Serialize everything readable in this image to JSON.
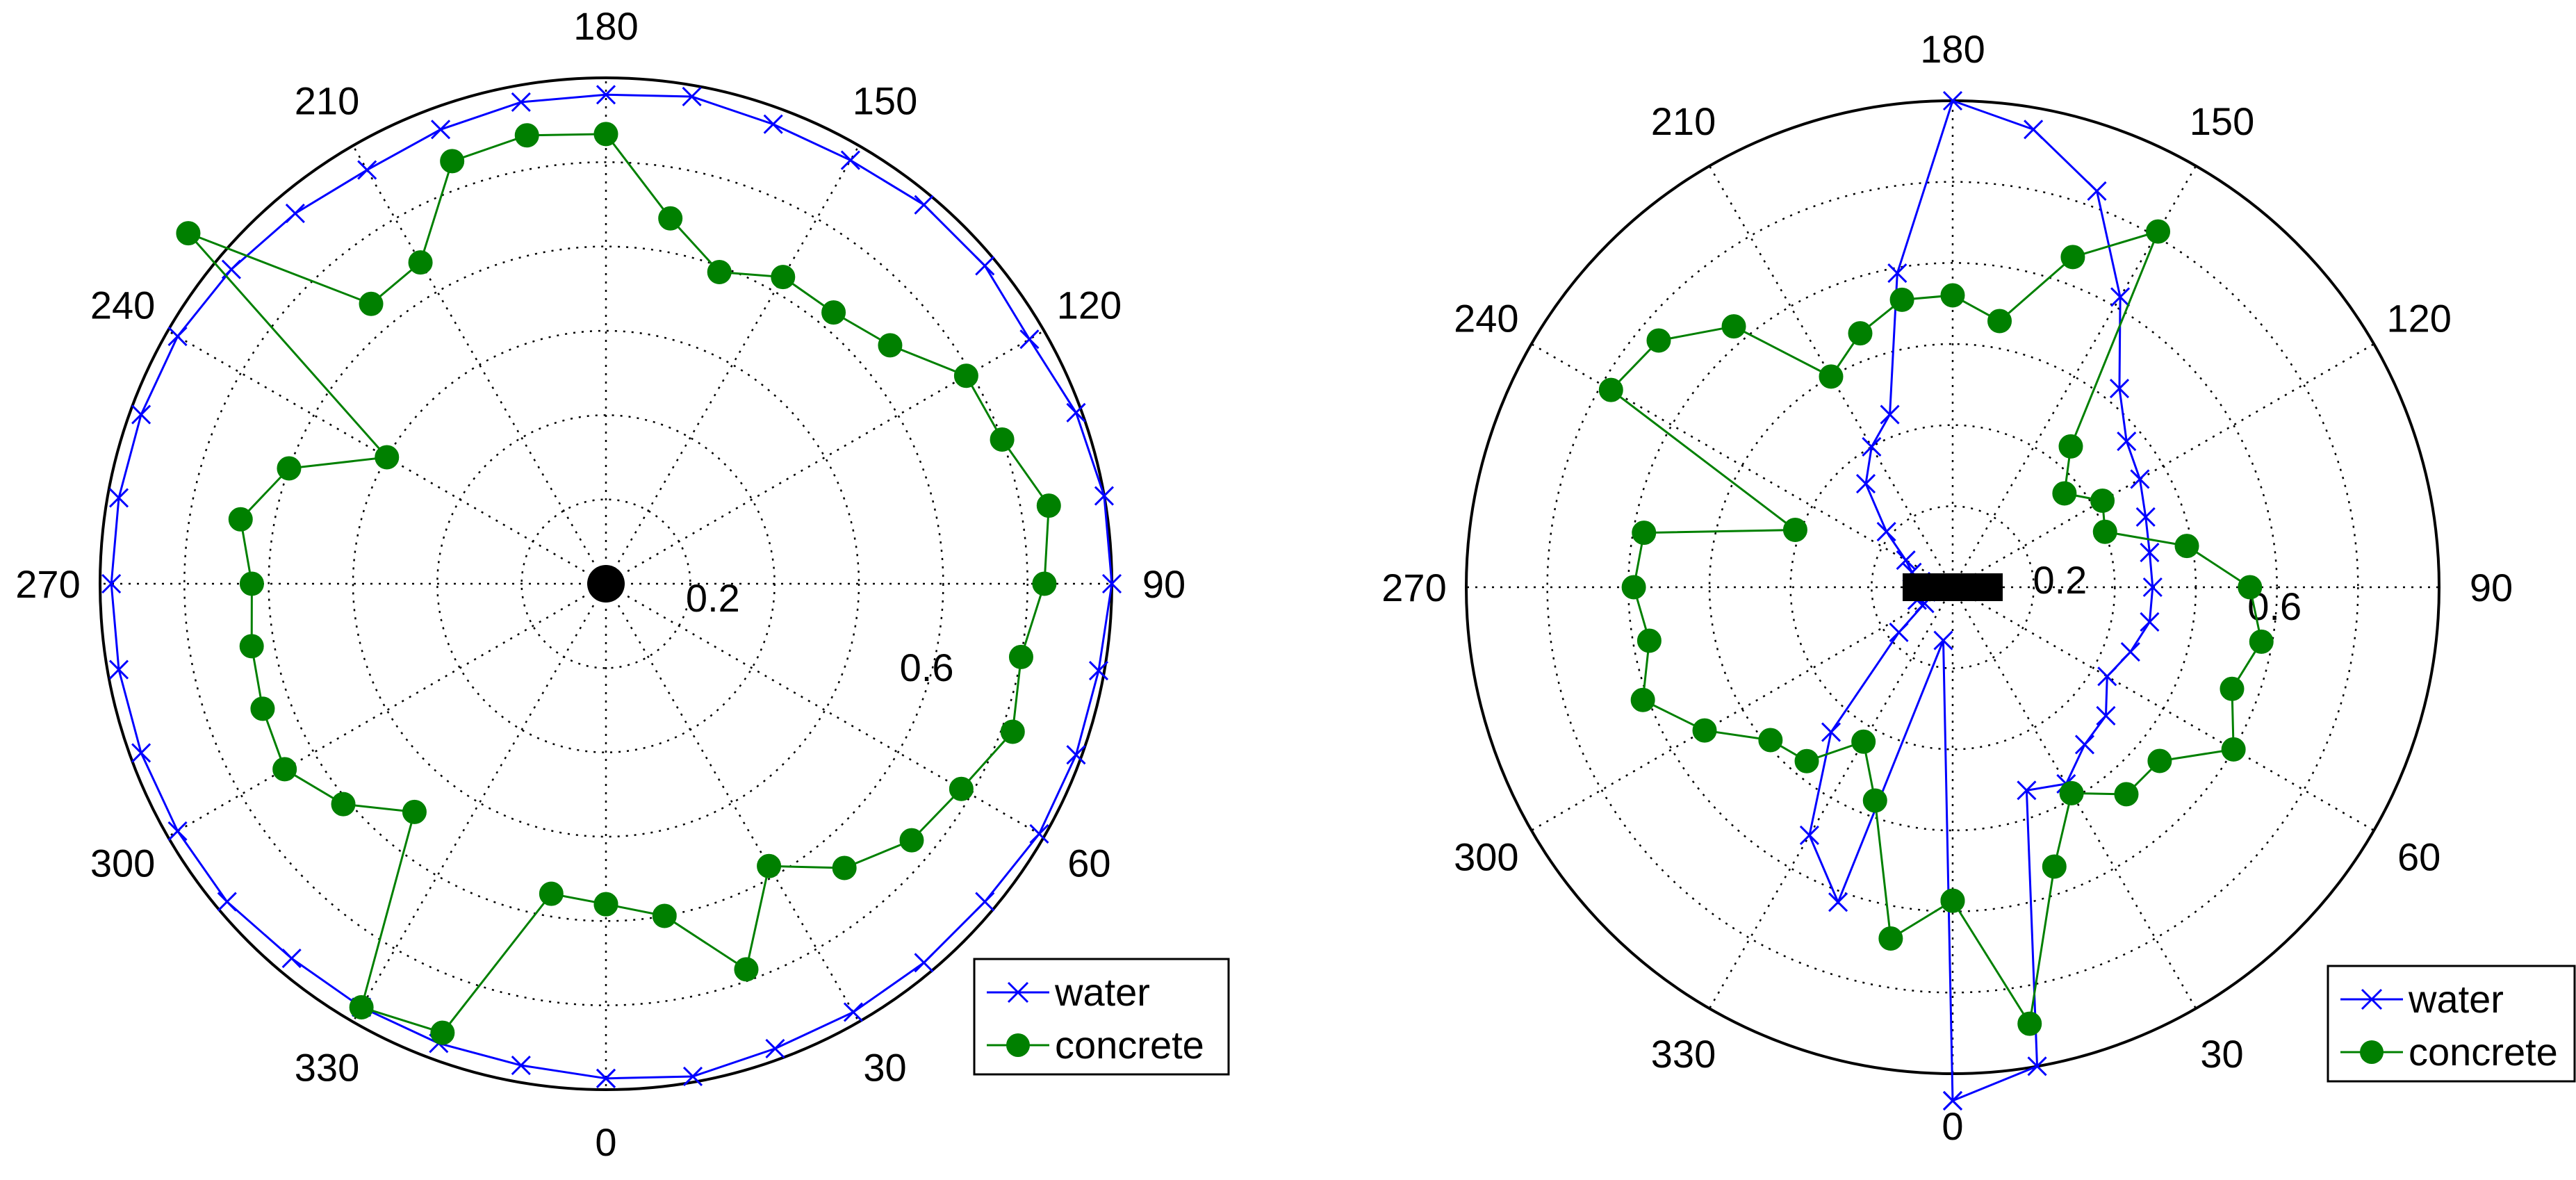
{
  "chart_data": [
    {
      "type": "polar",
      "rlim": [
        0,
        0.9
      ],
      "radial_ticks": [
        0.2,
        0.6
      ],
      "angle_tick_labels": [
        "0",
        "30",
        "60",
        "90",
        "120",
        "150",
        "180",
        "210",
        "240",
        "270",
        "300",
        "330"
      ],
      "theta_zero": "bottom",
      "theta_direction": "counterclockwise",
      "grid": true,
      "legend": {
        "placement": "bottom-right",
        "entries": [
          "water",
          "concrete"
        ]
      },
      "center_marker": "dot",
      "series": [
        {
          "name": "water",
          "color": "#0000ff",
          "marker": "x",
          "theta": [
            0,
            10,
            20,
            30,
            40,
            50,
            60,
            70,
            80,
            90,
            100,
            110,
            120,
            130,
            140,
            150,
            160,
            170,
            180,
            190,
            200,
            210,
            220,
            230,
            240,
            250,
            260,
            270,
            280,
            290,
            300,
            310,
            320,
            330,
            340,
            350,
            360
          ],
          "r": [
            0.88,
            0.89,
            0.88,
            0.88,
            0.88,
            0.88,
            0.89,
            0.89,
            0.89,
            0.9,
            0.9,
            0.89,
            0.87,
            0.88,
            0.88,
            0.87,
            0.87,
            0.88,
            0.87,
            0.87,
            0.86,
            0.85,
            0.86,
            0.87,
            0.88,
            0.88,
            0.88,
            0.88,
            0.88,
            0.88,
            0.88,
            0.88,
            0.87,
            0.87,
            0.87,
            0.87,
            0.88
          ]
        },
        {
          "name": "concrete",
          "color": "#008000",
          "marker": "o",
          "theta": [
            0,
            10,
            20,
            30,
            40,
            50,
            60,
            70,
            80,
            90,
            100,
            110,
            120,
            130,
            140,
            150,
            160,
            170,
            180,
            190,
            200,
            210,
            220,
            230,
            240,
            250,
            260,
            270,
            280,
            290,
            300,
            310,
            320,
            330,
            340,
            350,
            360
          ],
          "r": [
            0.57,
            0.6,
            0.73,
            0.58,
            0.66,
            0.71,
            0.73,
            0.77,
            0.75,
            0.78,
            0.8,
            0.75,
            0.74,
            0.66,
            0.63,
            0.63,
            0.59,
            0.66,
            0.8,
            0.81,
            0.8,
            0.66,
            0.65,
            0.97,
            0.45,
            0.6,
            0.66,
            0.63,
            0.64,
            0.65,
            0.66,
            0.61,
            0.53,
            0.87,
            0.85,
            0.56,
            0.57
          ]
        }
      ]
    },
    {
      "type": "polar",
      "rlim": [
        0,
        0.9
      ],
      "radial_ticks": [
        0.2,
        0.6
      ],
      "angle_tick_labels": [
        "0",
        "30",
        "60",
        "90",
        "120",
        "150",
        "180",
        "210",
        "240",
        "270",
        "300",
        "330"
      ],
      "theta_zero": "bottom",
      "theta_direction": "counterclockwise",
      "grid": true,
      "legend": {
        "placement": "bottom-right",
        "entries": [
          "water",
          "concrete"
        ]
      },
      "center_marker": "bar",
      "series": [
        {
          "name": "water",
          "color": "#0000ff",
          "marker": "x",
          "theta": [
            0,
            10,
            20,
            30,
            40,
            50,
            60,
            70,
            80,
            90,
            100,
            110,
            120,
            130,
            140,
            150,
            160,
            170,
            180,
            190,
            200,
            210,
            220,
            230,
            240,
            250,
            260,
            270,
            280,
            290,
            300,
            310,
            320,
            330,
            340,
            350,
            360
          ],
          "r": [
            0.95,
            0.9,
            0.4,
            0.42,
            0.38,
            0.37,
            0.33,
            0.35,
            0.37,
            0.37,
            0.37,
            0.38,
            0.4,
            0.42,
            0.48,
            0.62,
            0.78,
            0.86,
            0.9,
            0.59,
            0.34,
            0.3,
            0.25,
            0.16,
            0.1,
            0.08,
            0.06,
            0.05,
            0.05,
            0.07,
            0.06,
            0.13,
            0.35,
            0.53,
            0.62,
            0.1,
            0.95
          ]
        },
        {
          "name": "concrete",
          "color": "#008000",
          "marker": "o",
          "theta": [
            0,
            10,
            20,
            30,
            40,
            50,
            60,
            70,
            80,
            90,
            100,
            110,
            120,
            130,
            140,
            150,
            160,
            170,
            180,
            190,
            200,
            210,
            220,
            230,
            240,
            250,
            260,
            270,
            280,
            290,
            300,
            310,
            320,
            330,
            340,
            350,
            360
          ],
          "r": [
            0.58,
            0.82,
            0.55,
            0.44,
            0.5,
            0.5,
            0.6,
            0.55,
            0.58,
            0.55,
            0.44,
            0.3,
            0.32,
            0.27,
            0.34,
            0.76,
            0.65,
            0.5,
            0.54,
            0.54,
            0.5,
            0.45,
            0.63,
            0.71,
            0.73,
            0.31,
            0.58,
            0.59,
            0.57,
            0.61,
            0.53,
            0.44,
            0.42,
            0.33,
            0.42,
            0.66,
            0.58
          ]
        }
      ]
    }
  ]
}
